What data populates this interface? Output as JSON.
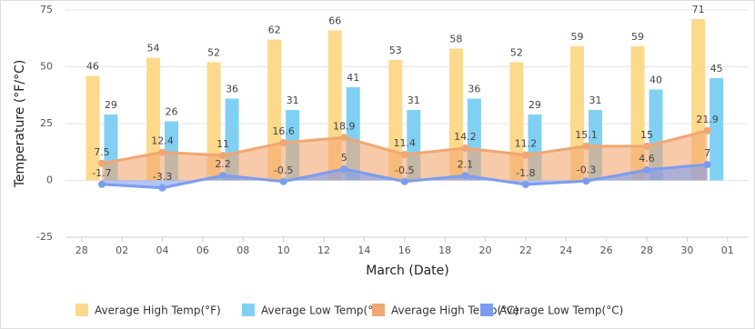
{
  "chart_data": {
    "type": "bar-area",
    "x_label": "March (Date)",
    "y_label": "Temperature (°F/°C)",
    "x": [
      1,
      4,
      7,
      10,
      13,
      16,
      19,
      22,
      25,
      28,
      31
    ],
    "xlim": [
      -0.8,
      33
    ],
    "xticks": [
      {
        "value": 0,
        "label": "28"
      },
      {
        "value": 2,
        "label": "02"
      },
      {
        "value": 4,
        "label": "04"
      },
      {
        "value": 6,
        "label": "06"
      },
      {
        "value": 8,
        "label": "08"
      },
      10,
      12,
      14,
      16,
      18,
      20,
      22,
      24,
      26,
      28,
      30,
      {
        "value": 32,
        "label": "01"
      }
    ],
    "ylim": [
      -25,
      75
    ],
    "yticks": [
      -25,
      0,
      25,
      50,
      75
    ],
    "grid": true,
    "legend": "bottom",
    "series": [
      {
        "name": "Average High Temp(°F)",
        "kind": "bar",
        "color": "#fdd98b",
        "values": [
          46,
          54,
          52,
          62,
          66,
          53,
          58,
          52,
          59,
          59,
          71
        ]
      },
      {
        "name": "Average Low Temp(°F)",
        "kind": "bar",
        "color": "#80d0f4",
        "values": [
          29,
          26,
          36,
          31,
          41,
          31,
          36,
          29,
          31,
          40,
          45
        ]
      },
      {
        "name": "Average High Temp(°C)",
        "kind": "area",
        "color": "#f2a672",
        "values": [
          7.5,
          12.4,
          11,
          16.6,
          18.9,
          11.4,
          14.2,
          11.2,
          15.1,
          15,
          21.9
        ]
      },
      {
        "name": "Average Low Temp(°C)",
        "kind": "area",
        "color": "#7b9df0",
        "values": [
          -1.7,
          -3.3,
          2.2,
          -0.5,
          5,
          -0.5,
          2.1,
          -1.8,
          -0.3,
          4.6,
          7
        ]
      }
    ]
  }
}
